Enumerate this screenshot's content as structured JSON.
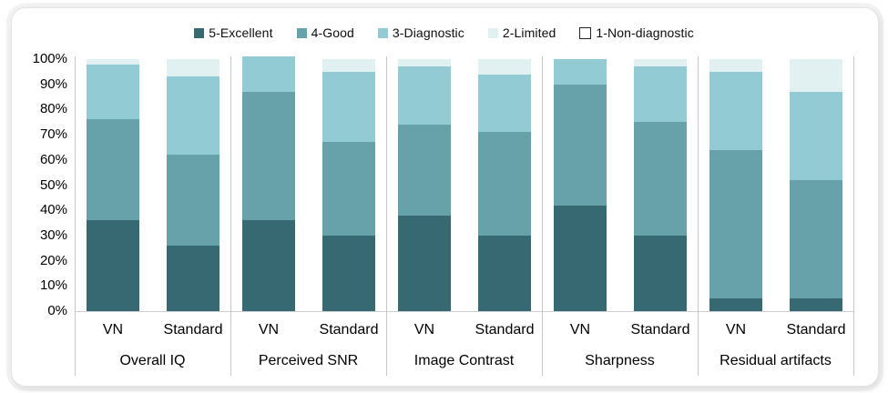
{
  "chart_data": {
    "type": "bar",
    "variant": "stacked-100pct",
    "title": "",
    "legend_position": "top",
    "gridlines": false,
    "y_axis": {
      "min": 0,
      "max": 100,
      "tick_step": 10,
      "tick_labels": [
        "0%",
        "10%",
        "20%",
        "30%",
        "40%",
        "50%",
        "60%",
        "70%",
        "80%",
        "90%",
        "100%"
      ]
    },
    "series": [
      {
        "name": "5-Excellent",
        "color": "#376972",
        "outline": null
      },
      {
        "name": "4-Good",
        "color": "#67a1a9",
        "outline": null
      },
      {
        "name": "3-Diagnostic",
        "color": "#92cbd3",
        "outline": null
      },
      {
        "name": "2-Limited",
        "color": "#e1f0f0",
        "outline": null
      },
      {
        "name": "1-Non-diagnostic",
        "color": "#ffffff",
        "outline": "#222222"
      }
    ],
    "categories": [
      "Overall IQ",
      "Perceived SNR",
      "Image Contrast",
      "Sharpness",
      "Residual artifacts"
    ],
    "bar_labels": [
      "VN",
      "Standard"
    ],
    "groups": [
      {
        "category": "Overall IQ",
        "bars": [
          {
            "label": "VN",
            "segments": [
              36,
              40,
              22,
              2,
              0
            ]
          },
          {
            "label": "Standard",
            "segments": [
              26,
              36,
              31,
              7,
              0
            ]
          }
        ]
      },
      {
        "category": "Perceived SNR",
        "bars": [
          {
            "label": "VN",
            "segments": [
              36,
              51,
              14,
              0,
              0
            ]
          },
          {
            "label": "Standard",
            "segments": [
              30,
              37,
              28,
              5,
              0
            ]
          }
        ]
      },
      {
        "category": "Image Contrast",
        "bars": [
          {
            "label": "VN",
            "segments": [
              38,
              36,
              23,
              3,
              0
            ]
          },
          {
            "label": "Standard",
            "segments": [
              30,
              41,
              23,
              6,
              0
            ]
          }
        ]
      },
      {
        "category": "Sharpness",
        "bars": [
          {
            "label": "VN",
            "segments": [
              42,
              48,
              10,
              0,
              0
            ]
          },
          {
            "label": "Standard",
            "segments": [
              30,
              45,
              22,
              3,
              0
            ]
          }
        ]
      },
      {
        "category": "Residual artifacts",
        "bars": [
          {
            "label": "VN",
            "segments": [
              5,
              59,
              31,
              5,
              0
            ]
          },
          {
            "label": "Standard",
            "segments": [
              5,
              47,
              35,
              13,
              0
            ]
          }
        ]
      }
    ]
  }
}
